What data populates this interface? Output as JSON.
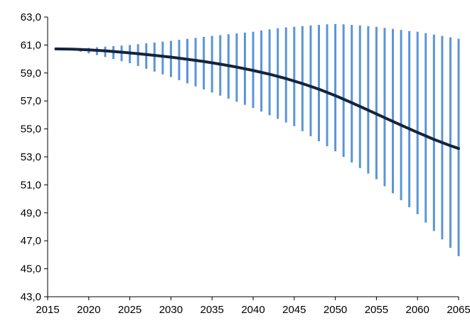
{
  "chart_data": {
    "type": "line",
    "title": "",
    "xlabel": "",
    "ylabel": "",
    "xlim": [
      2015,
      2065
    ],
    "ylim": [
      43,
      63
    ],
    "y_ticks": [
      "63,0",
      "61,0",
      "59,0",
      "57,0",
      "55,0",
      "53,0",
      "51,0",
      "49,0",
      "47,0",
      "45,0",
      "43,0"
    ],
    "x_ticks": [
      "2015",
      "2020",
      "2025",
      "2030",
      "2035",
      "2040",
      "2045",
      "2050",
      "2055",
      "2060",
      "2065"
    ],
    "grid": false,
    "legend": "none",
    "colors": {
      "band": "#5b95d6",
      "line": "#14243e",
      "axis": "#000000"
    },
    "band_x": [
      2016,
      2017,
      2018,
      2019,
      2020,
      2021,
      2022,
      2023,
      2024,
      2025,
      2026,
      2027,
      2028,
      2029,
      2030,
      2031,
      2032,
      2033,
      2034,
      2035,
      2036,
      2037,
      2038,
      2039,
      2040,
      2041,
      2042,
      2043,
      2044,
      2045,
      2046,
      2047,
      2048,
      2049,
      2050,
      2051,
      2052,
      2053,
      2054,
      2055,
      2056,
      2057,
      2058,
      2059,
      2060,
      2061,
      2062,
      2063,
      2064,
      2065
    ],
    "band_high": [
      60.72,
      60.74,
      60.76,
      60.78,
      60.8,
      60.84,
      60.88,
      60.92,
      60.96,
      61.0,
      61.06,
      61.12,
      61.18,
      61.24,
      61.3,
      61.37,
      61.44,
      61.51,
      61.58,
      61.65,
      61.71,
      61.77,
      61.83,
      61.89,
      61.95,
      62.04,
      62.12,
      62.2,
      62.26,
      62.3,
      62.35,
      62.4,
      62.44,
      62.48,
      62.5,
      62.48,
      62.44,
      62.4,
      62.35,
      62.3,
      62.22,
      62.15,
      62.08,
      62.0,
      61.95,
      61.85,
      61.75,
      61.65,
      61.55,
      61.45
    ],
    "band_low": [
      60.72,
      60.7,
      60.62,
      60.52,
      60.4,
      60.28,
      60.14,
      60.0,
      59.84,
      59.7,
      59.5,
      59.3,
      59.1,
      58.9,
      58.7,
      58.48,
      58.26,
      58.04,
      57.82,
      57.6,
      57.38,
      57.16,
      56.94,
      56.72,
      56.5,
      56.24,
      55.98,
      55.72,
      55.46,
      55.2,
      54.84,
      54.48,
      54.12,
      53.76,
      53.4,
      53.0,
      52.6,
      52.2,
      51.8,
      51.4,
      50.9,
      50.4,
      49.9,
      49.4,
      48.9,
      48.3,
      47.7,
      47.1,
      46.5,
      45.9
    ],
    "series": [
      {
        "x": [
          2016,
          2018,
          2020,
          2022,
          2024,
          2026,
          2028,
          2030,
          2032,
          2034,
          2036,
          2038,
          2040,
          2042,
          2044,
          2046,
          2048,
          2050,
          2052,
          2054,
          2056,
          2058,
          2060,
          2062,
          2064,
          2065
        ],
        "values": [
          60.72,
          60.7,
          60.65,
          60.58,
          60.49,
          60.38,
          60.26,
          60.13,
          59.98,
          59.82,
          59.63,
          59.42,
          59.18,
          58.91,
          58.6,
          58.24,
          57.84,
          57.38,
          56.87,
          56.34,
          55.8,
          55.27,
          54.75,
          54.25,
          53.8,
          53.6
        ]
      }
    ]
  }
}
